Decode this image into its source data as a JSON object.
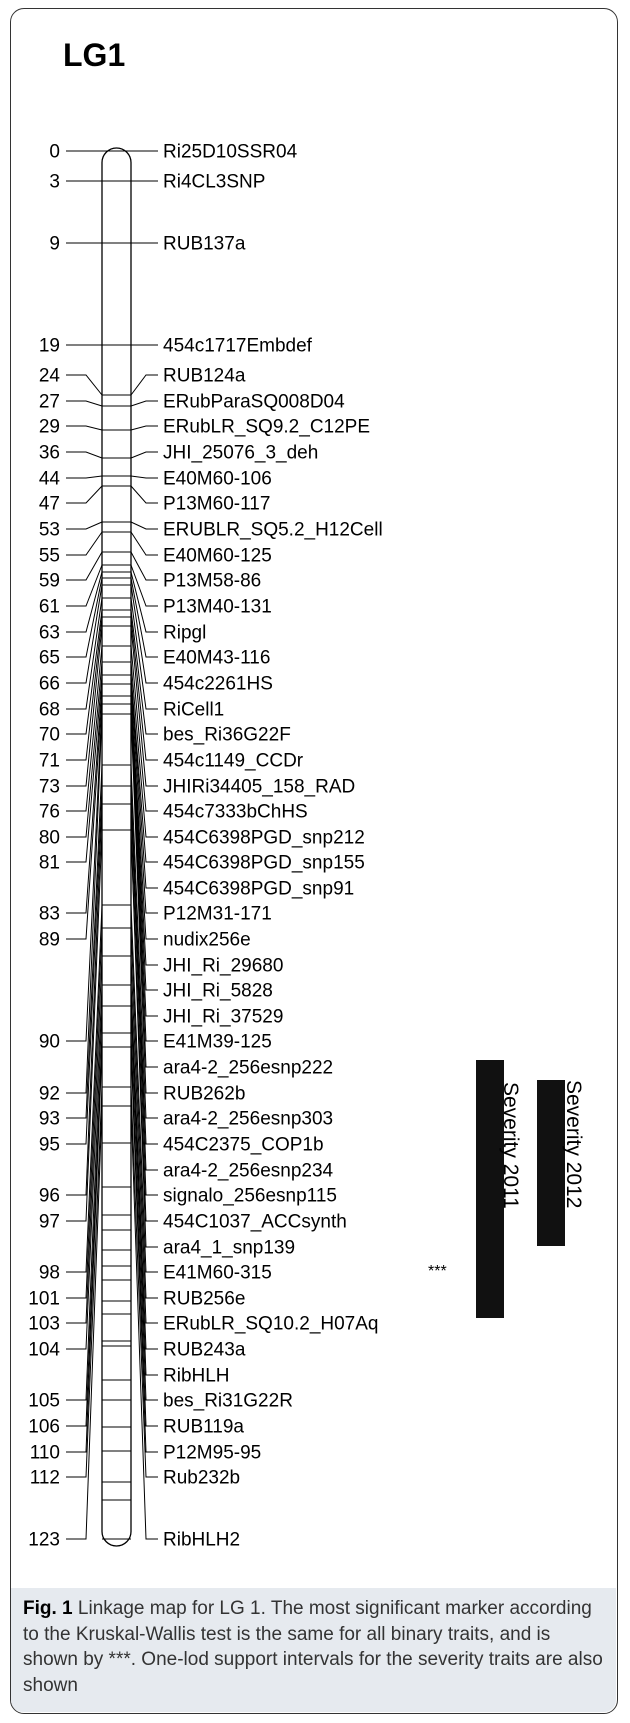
{
  "title": "LG1",
  "markers": [
    {
      "pos": "0",
      "name": "Ri25D10SSR04"
    },
    {
      "pos": "3",
      "name": "Ri4CL3SNP"
    },
    {
      "pos": "9",
      "name": "RUB137a"
    },
    {
      "pos": "19",
      "name": "454c1717Embdef"
    },
    {
      "pos": "24",
      "name": "RUB124a"
    },
    {
      "pos": "27",
      "name": "ERubParaSQ008D04"
    },
    {
      "pos": "29",
      "name": "ERubLR_SQ9.2_C12PE"
    },
    {
      "pos": "36",
      "name": "JHI_25076_3_deh"
    },
    {
      "pos": "44",
      "name": "E40M60-106"
    },
    {
      "pos": "47",
      "name": "P13M60-117"
    },
    {
      "pos": "53",
      "name": "ERUBLR_SQ5.2_H12Cell"
    },
    {
      "pos": "55",
      "name": "E40M60-125"
    },
    {
      "pos": "59",
      "name": "P13M58-86"
    },
    {
      "pos": "61",
      "name": "P13M40-131"
    },
    {
      "pos": "63",
      "name": "Ripgl"
    },
    {
      "pos": "65",
      "name": "E40M43-116"
    },
    {
      "pos": "66",
      "name": "454c2261HS"
    },
    {
      "pos": "68",
      "name": "RiCell1"
    },
    {
      "pos": "70",
      "name": "bes_Ri36G22F"
    },
    {
      "pos": "71",
      "name": "454c1149_CCDr"
    },
    {
      "pos": "73",
      "name": "JHIRi34405_158_RAD"
    },
    {
      "pos": "76",
      "name": "454c7333bChHS"
    },
    {
      "pos": "80",
      "name": "454C6398PGD_snp212"
    },
    {
      "pos": "81",
      "name": "454C6398PGD_snp155"
    },
    {
      "pos": "",
      "name": "454C6398PGD_snp91"
    },
    {
      "pos": "83",
      "name": "P12M31-171"
    },
    {
      "pos": "89",
      "name": "nudix256e"
    },
    {
      "pos": "",
      "name": "JHI_Ri_29680"
    },
    {
      "pos": "",
      "name": "JHI_Ri_5828"
    },
    {
      "pos": "",
      "name": "JHI_Ri_37529"
    },
    {
      "pos": "90",
      "name": "E41M39-125"
    },
    {
      "pos": "",
      "name": "ara4-2_256esnp222"
    },
    {
      "pos": "92",
      "name": "RUB262b"
    },
    {
      "pos": "93",
      "name": "ara4-2_256esnp303"
    },
    {
      "pos": "95",
      "name": "454C2375_COP1b"
    },
    {
      "pos": "",
      "name": "ara4-2_256esnp234"
    },
    {
      "pos": "96",
      "name": "signalo_256esnp115"
    },
    {
      "pos": "97",
      "name": "454C1037_ACCsynth"
    },
    {
      "pos": "",
      "name": "ara4_1_snp139"
    },
    {
      "pos": "98",
      "name": "E41M60-315"
    },
    {
      "pos": "101",
      "name": "RUB256e"
    },
    {
      "pos": "103",
      "name": "ERubLR_SQ10.2_H07Aq"
    },
    {
      "pos": "104",
      "name": "RUB243a"
    },
    {
      "pos": "",
      "name": "RibHLH"
    },
    {
      "pos": "105",
      "name": "bes_Ri31G22R"
    },
    {
      "pos": "106",
      "name": "RUB119a"
    },
    {
      "pos": "110",
      "name": "P12M95-95"
    },
    {
      "pos": "112",
      "name": "Rub232b"
    },
    {
      "pos": "123",
      "name": "RibHLH2"
    }
  ],
  "significance_marker": "***",
  "intervals": [
    {
      "label": "Severity 2011",
      "color": "#111111"
    },
    {
      "label": "Severity 2012",
      "color": "#111111"
    }
  ],
  "caption": {
    "label": "Fig. 1",
    "text": "Linkage map for LG 1. The most significant marker according to the Kruskal-Wallis test is the same for all binary traits, and is shown by ***. One-lod support intervals for the severity traits are also shown"
  }
}
